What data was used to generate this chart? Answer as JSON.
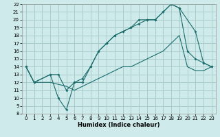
{
  "xlabel": "Humidex (Indice chaleur)",
  "bg_color": "#ceeaea",
  "grid_color": "#aacccc",
  "line_color": "#1a6b6b",
  "xlim": [
    -0.5,
    23.5
  ],
  "ylim": [
    8,
    22
  ],
  "xticks": [
    0,
    1,
    2,
    3,
    4,
    5,
    6,
    7,
    8,
    9,
    10,
    11,
    12,
    13,
    14,
    15,
    16,
    17,
    18,
    19,
    20,
    21,
    22,
    23
  ],
  "yticks": [
    8,
    9,
    10,
    11,
    12,
    13,
    14,
    15,
    16,
    17,
    18,
    19,
    20,
    21,
    22
  ],
  "line1_x": [
    0,
    1,
    3,
    4,
    5,
    6,
    7,
    8,
    9,
    10,
    11,
    12,
    13,
    14,
    15,
    16,
    17,
    18,
    19,
    20,
    21,
    22,
    23
  ],
  "line1_y": [
    14,
    12,
    13,
    10,
    8.5,
    12,
    12,
    14,
    16,
    17,
    18,
    18.5,
    19,
    20,
    20,
    20,
    21,
    22,
    21.5,
    16,
    15,
    14.5,
    14
  ],
  "line2_x": [
    0,
    1,
    3,
    4,
    5,
    6,
    7,
    8,
    9,
    10,
    11,
    12,
    13,
    14,
    15,
    16,
    17,
    18,
    19,
    21,
    22,
    23
  ],
  "line2_y": [
    14,
    12,
    13,
    13,
    11,
    12,
    12.5,
    14,
    16,
    17,
    18,
    18.5,
    19,
    19.5,
    20,
    20,
    21,
    22,
    21.5,
    18.5,
    14.5,
    14
  ],
  "line3_x": [
    0,
    1,
    3,
    5,
    6,
    7,
    8,
    9,
    10,
    11,
    12,
    13,
    14,
    15,
    16,
    17,
    18,
    19,
    20,
    21,
    22,
    23
  ],
  "line3_y": [
    14,
    12,
    12,
    11.5,
    11,
    11.5,
    12,
    12.5,
    13,
    13.5,
    14,
    14,
    14.5,
    15,
    15.5,
    16,
    17,
    18,
    14,
    13.5,
    13.5,
    14
  ]
}
